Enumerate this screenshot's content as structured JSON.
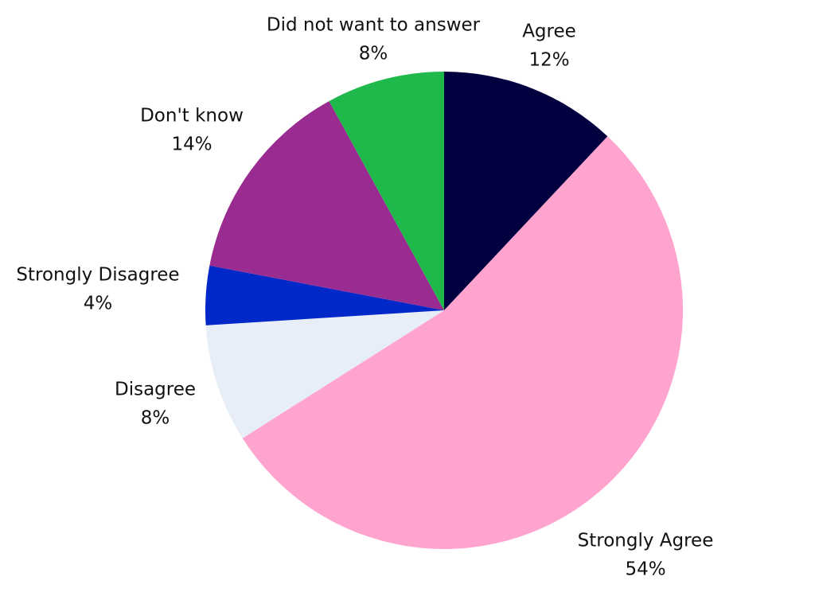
{
  "chart_data": {
    "type": "pie",
    "categories": [
      "Agree",
      "Strongly Agree",
      "Disagree",
      "Strongly Disagree",
      "Don't know",
      "Did not want to answer"
    ],
    "values": [
      12,
      54,
      8,
      4,
      14,
      8
    ],
    "value_labels": [
      "12%",
      "54%",
      "8%",
      "4%",
      "14%",
      "8%"
    ],
    "colors": [
      "#03003f",
      "#ffa3cf",
      "#e8eef8",
      "#0028c8",
      "#9a2b90",
      "#1fb84a"
    ]
  }
}
